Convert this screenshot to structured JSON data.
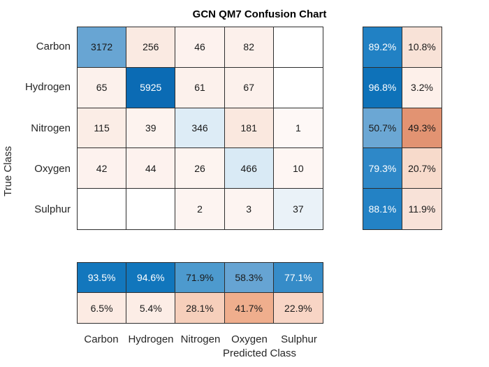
{
  "title": "GCN QM7 Confusion Chart",
  "axes": {
    "x_label": "Predicted Class",
    "y_label": "True Class"
  },
  "classes": [
    "Carbon",
    "Hydrogen",
    "Nitrogen",
    "Oxygen",
    "Sulphur"
  ],
  "colors": {
    "diagonal_base": "#0072bd",
    "off_diagonal_base": "#d95319",
    "grid_line": "#2e2e2e",
    "label_text": "#262626",
    "cell_text_dark": "#1a1a1a",
    "cell_text_light": "#ffffff"
  },
  "chart_data": {
    "type": "heatmap",
    "subtype": "confusion-matrix",
    "title": "GCN QM7 Confusion Chart",
    "xlabel": "Predicted Class",
    "ylabel": "True Class",
    "classes": [
      "Carbon",
      "Hydrogen",
      "Nitrogen",
      "Oxygen",
      "Sulphur"
    ],
    "matrix_rows_true_class": [
      [
        3172,
        256,
        46,
        82,
        null
      ],
      [
        65,
        5925,
        61,
        67,
        null
      ],
      [
        115,
        39,
        346,
        181,
        1
      ],
      [
        42,
        44,
        26,
        466,
        10
      ],
      [
        null,
        null,
        2,
        3,
        37
      ]
    ],
    "row_summary": {
      "position": "right",
      "correct_pct": [
        89.2,
        96.8,
        50.7,
        79.3,
        88.1
      ],
      "incorrect_pct": [
        10.8,
        3.2,
        49.3,
        20.7,
        11.9
      ]
    },
    "column_summary": {
      "position": "bottom",
      "correct_pct": [
        93.5,
        94.6,
        71.9,
        58.3,
        77.1
      ],
      "incorrect_pct": [
        6.5,
        5.4,
        28.1,
        41.7,
        22.9
      ]
    },
    "legend": "none",
    "grid": true
  },
  "render": {
    "main_cells": [
      {
        "t": "3172",
        "bg": "#68a5d3",
        "fg": "#1a1a1a"
      },
      {
        "t": "256",
        "bg": "#faeae2",
        "fg": "#1a1a1a"
      },
      {
        "t": "46",
        "bg": "#fdf2ee",
        "fg": "#1a1a1a"
      },
      {
        "t": "82",
        "bg": "#fcf0eb",
        "fg": "#1a1a1a"
      },
      {
        "t": "",
        "bg": "#ffffff",
        "fg": "#1a1a1a"
      },
      {
        "t": "65",
        "bg": "#fcf1ec",
        "fg": "#1a1a1a"
      },
      {
        "t": "5925",
        "bg": "#0b6bb4",
        "fg": "#ffffff"
      },
      {
        "t": "61",
        "bg": "#fcf1ec",
        "fg": "#1a1a1a"
      },
      {
        "t": "67",
        "bg": "#fcf1ec",
        "fg": "#1a1a1a"
      },
      {
        "t": "",
        "bg": "#ffffff",
        "fg": "#1a1a1a"
      },
      {
        "t": "115",
        "bg": "#fbede6",
        "fg": "#1a1a1a"
      },
      {
        "t": "39",
        "bg": "#fdf3ef",
        "fg": "#1a1a1a"
      },
      {
        "t": "346",
        "bg": "#ddecf6",
        "fg": "#1a1a1a"
      },
      {
        "t": "181",
        "bg": "#fae8df",
        "fg": "#1a1a1a"
      },
      {
        "t": "1",
        "bg": "#fef8f6",
        "fg": "#1a1a1a"
      },
      {
        "t": "42",
        "bg": "#fdf2ee",
        "fg": "#1a1a1a"
      },
      {
        "t": "44",
        "bg": "#fdf2ee",
        "fg": "#1a1a1a"
      },
      {
        "t": "26",
        "bg": "#fdf4f0",
        "fg": "#1a1a1a"
      },
      {
        "t": "466",
        "bg": "#d9eaf5",
        "fg": "#1a1a1a"
      },
      {
        "t": "10",
        "bg": "#fef6f3",
        "fg": "#1a1a1a"
      },
      {
        "t": "",
        "bg": "#ffffff",
        "fg": "#1a1a1a"
      },
      {
        "t": "",
        "bg": "#ffffff",
        "fg": "#1a1a1a"
      },
      {
        "t": "2",
        "bg": "#fdf4f1",
        "fg": "#1a1a1a"
      },
      {
        "t": "3",
        "bg": "#fdf4f1",
        "fg": "#1a1a1a"
      },
      {
        "t": "37",
        "bg": "#eaf2f8",
        "fg": "#1a1a1a"
      }
    ],
    "row_summary_cells": [
      {
        "t": "89.2%",
        "bg": "#2181c4",
        "fg": "#ffffff"
      },
      {
        "t": "10.8%",
        "bg": "#f8e2d7",
        "fg": "#1a1a1a"
      },
      {
        "t": "96.8%",
        "bg": "#0e72b9",
        "fg": "#ffffff"
      },
      {
        "t": "3.2%",
        "bg": "#fdf0ea",
        "fg": "#1a1a1a"
      },
      {
        "t": "50.7%",
        "bg": "#6ba7d4",
        "fg": "#1a1a1a"
      },
      {
        "t": "49.3%",
        "bg": "#e29372",
        "fg": "#1a1a1a"
      },
      {
        "t": "79.3%",
        "bg": "#2e88c8",
        "fg": "#ffffff"
      },
      {
        "t": "20.7%",
        "bg": "#f7dacb",
        "fg": "#1a1a1a"
      },
      {
        "t": "88.1%",
        "bg": "#2382c5",
        "fg": "#ffffff"
      },
      {
        "t": "11.9%",
        "bg": "#f8e2d8",
        "fg": "#1a1a1a"
      }
    ],
    "col_summary_cells": [
      {
        "t": "93.5%",
        "bg": "#1377bd",
        "fg": "#ffffff"
      },
      {
        "t": "94.6%",
        "bg": "#1176bc",
        "fg": "#ffffff"
      },
      {
        "t": "71.9%",
        "bg": "#4d9ace",
        "fg": "#1a1a1a"
      },
      {
        "t": "58.3%",
        "bg": "#66a4d3",
        "fg": "#1a1a1a"
      },
      {
        "t": "77.1%",
        "bg": "#368cc8",
        "fg": "#ffffff"
      },
      {
        "t": "6.5%",
        "bg": "#fcebe3",
        "fg": "#1a1a1a"
      },
      {
        "t": "5.4%",
        "bg": "#fcede6",
        "fg": "#1a1a1a"
      },
      {
        "t": "28.1%",
        "bg": "#f6cfbb",
        "fg": "#1a1a1a"
      },
      {
        "t": "41.7%",
        "bg": "#efae8d",
        "fg": "#1a1a1a"
      },
      {
        "t": "22.9%",
        "bg": "#f8d5c5",
        "fg": "#1a1a1a"
      }
    ]
  }
}
